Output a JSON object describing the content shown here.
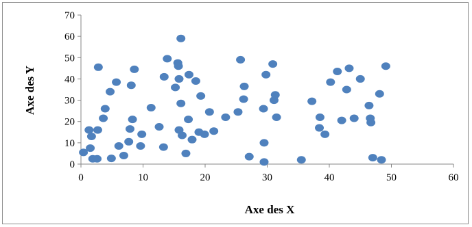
{
  "chart_data": {
    "type": "scatter",
    "title": "",
    "xlabel": "Axe des X",
    "ylabel": "Axe des Y",
    "xlim": [
      0,
      60
    ],
    "ylim": [
      0,
      70
    ],
    "x_ticks": [
      0,
      10,
      20,
      30,
      40,
      50,
      60
    ],
    "y_ticks": [
      0,
      10,
      20,
      30,
      40,
      50,
      60,
      70
    ],
    "grid": false,
    "legend": "none",
    "marker_color": "#4F81BD",
    "points": [
      {
        "x": 0.4,
        "y": 5.5
      },
      {
        "x": 1.3,
        "y": 16
      },
      {
        "x": 1.5,
        "y": 7.5
      },
      {
        "x": 1.7,
        "y": 13
      },
      {
        "x": 1.9,
        "y": 2.5
      },
      {
        "x": 2.6,
        "y": 2.5
      },
      {
        "x": 2.7,
        "y": 16
      },
      {
        "x": 2.8,
        "y": 45.5
      },
      {
        "x": 3.6,
        "y": 21.5
      },
      {
        "x": 3.9,
        "y": 26
      },
      {
        "x": 4.7,
        "y": 34
      },
      {
        "x": 4.9,
        "y": 2.7
      },
      {
        "x": 5.7,
        "y": 38.5
      },
      {
        "x": 6.1,
        "y": 8.5
      },
      {
        "x": 6.9,
        "y": 4
      },
      {
        "x": 7.7,
        "y": 10.5
      },
      {
        "x": 7.9,
        "y": 16.5
      },
      {
        "x": 8.1,
        "y": 37
      },
      {
        "x": 8.3,
        "y": 21
      },
      {
        "x": 8.6,
        "y": 44.5
      },
      {
        "x": 9.6,
        "y": 8.5
      },
      {
        "x": 9.8,
        "y": 14
      },
      {
        "x": 11.3,
        "y": 26.5
      },
      {
        "x": 12.6,
        "y": 17.5
      },
      {
        "x": 13.3,
        "y": 8
      },
      {
        "x": 13.4,
        "y": 41
      },
      {
        "x": 13.9,
        "y": 49.5
      },
      {
        "x": 15.2,
        "y": 36
      },
      {
        "x": 15.6,
        "y": 47.5
      },
      {
        "x": 15.7,
        "y": 46
      },
      {
        "x": 15.8,
        "y": 40
      },
      {
        "x": 15.8,
        "y": 16
      },
      {
        "x": 16.1,
        "y": 59
      },
      {
        "x": 16.1,
        "y": 28.5
      },
      {
        "x": 16.3,
        "y": 13.5
      },
      {
        "x": 16.9,
        "y": 5
      },
      {
        "x": 17.3,
        "y": 21
      },
      {
        "x": 17.4,
        "y": 42
      },
      {
        "x": 17.9,
        "y": 11.5
      },
      {
        "x": 18.5,
        "y": 39
      },
      {
        "x": 19.0,
        "y": 15
      },
      {
        "x": 19.3,
        "y": 32
      },
      {
        "x": 19.9,
        "y": 14
      },
      {
        "x": 20.7,
        "y": 24.5
      },
      {
        "x": 21.4,
        "y": 15.5
      },
      {
        "x": 23.3,
        "y": 22
      },
      {
        "x": 25.3,
        "y": 24.5
      },
      {
        "x": 25.7,
        "y": 49
      },
      {
        "x": 26.2,
        "y": 30.5
      },
      {
        "x": 26.3,
        "y": 36.5
      },
      {
        "x": 27.1,
        "y": 3.5
      },
      {
        "x": 29.4,
        "y": 26
      },
      {
        "x": 29.5,
        "y": 10
      },
      {
        "x": 29.5,
        "y": 1
      },
      {
        "x": 29.8,
        "y": 42
      },
      {
        "x": 30.9,
        "y": 47
      },
      {
        "x": 31.1,
        "y": 30
      },
      {
        "x": 31.3,
        "y": 32.5
      },
      {
        "x": 31.5,
        "y": 22
      },
      {
        "x": 35.5,
        "y": 2
      },
      {
        "x": 37.2,
        "y": 29.5
      },
      {
        "x": 38.4,
        "y": 17
      },
      {
        "x": 38.5,
        "y": 22
      },
      {
        "x": 39.3,
        "y": 14
      },
      {
        "x": 40.2,
        "y": 38.5
      },
      {
        "x": 41.3,
        "y": 43.5
      },
      {
        "x": 42.0,
        "y": 20.5
      },
      {
        "x": 42.8,
        "y": 35
      },
      {
        "x": 43.2,
        "y": 45
      },
      {
        "x": 44.0,
        "y": 21.5
      },
      {
        "x": 45.0,
        "y": 40
      },
      {
        "x": 46.4,
        "y": 27.5
      },
      {
        "x": 46.6,
        "y": 21.5
      },
      {
        "x": 46.7,
        "y": 19.5
      },
      {
        "x": 47.0,
        "y": 3
      },
      {
        "x": 48.1,
        "y": 33
      },
      {
        "x": 48.4,
        "y": 2
      },
      {
        "x": 49.1,
        "y": 46
      }
    ]
  }
}
